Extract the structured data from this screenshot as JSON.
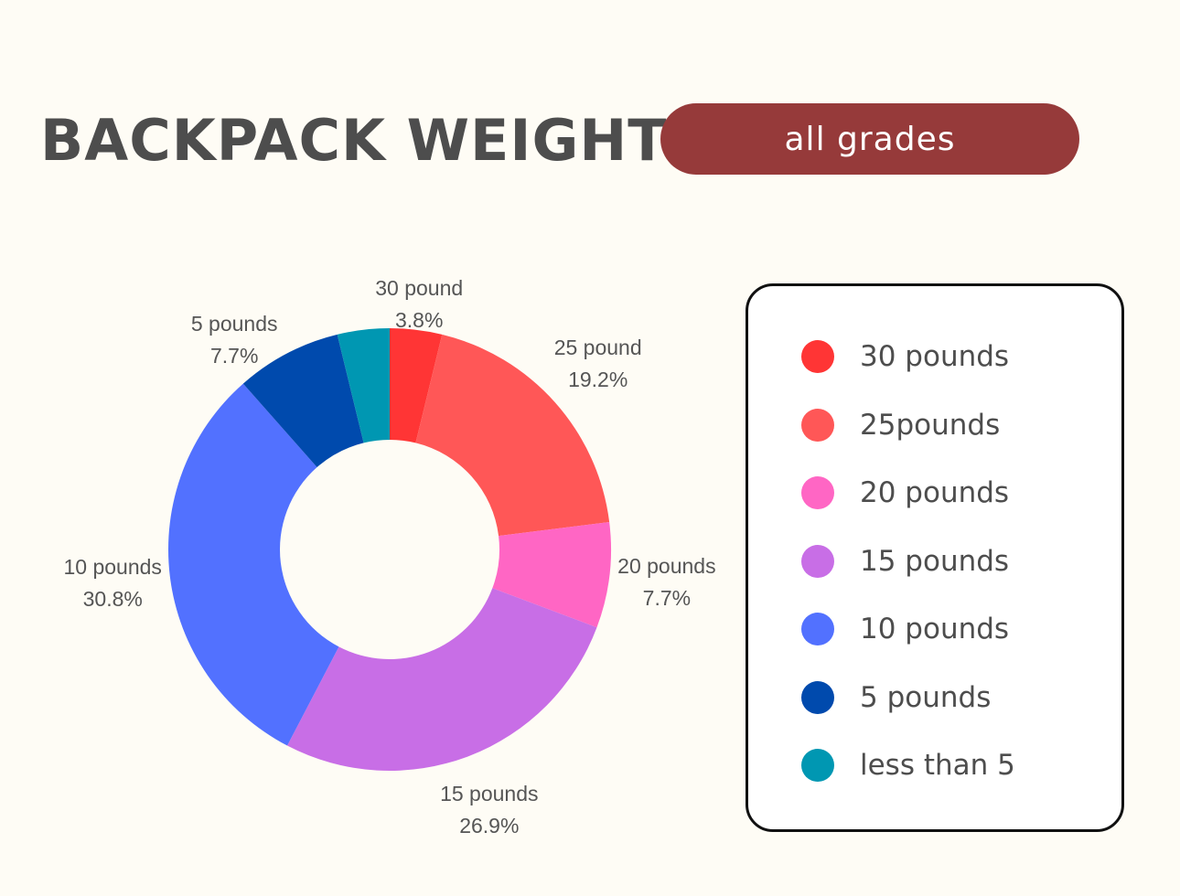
{
  "header": {
    "title": "BACKPACK WEIGHT",
    "badge": "all grades"
  },
  "chart_data": {
    "type": "pie",
    "categories": [
      "30 pound",
      "25 pound",
      "20 pounds",
      "15 pounds",
      "10 pounds",
      "5 pounds",
      ""
    ],
    "values": [
      3.8,
      19.2,
      7.7,
      26.9,
      30.8,
      7.7,
      3.8
    ],
    "value_labels": [
      "3.8%",
      "19.2%",
      "7.7%",
      "26.9%",
      "30.8%",
      "7.7%",
      ""
    ],
    "colors": [
      "#ff3535",
      "#ff5757",
      "#ff66c4",
      "#c86ee6",
      "#5271ff",
      "#004aad",
      "#0097b2"
    ],
    "donut": true,
    "legend": {
      "position": "right",
      "entries": [
        "30 pounds",
        "25pounds",
        "20 pounds",
        "15 pounds",
        "10 pounds",
        "5 pounds",
        "less than 5"
      ]
    }
  }
}
